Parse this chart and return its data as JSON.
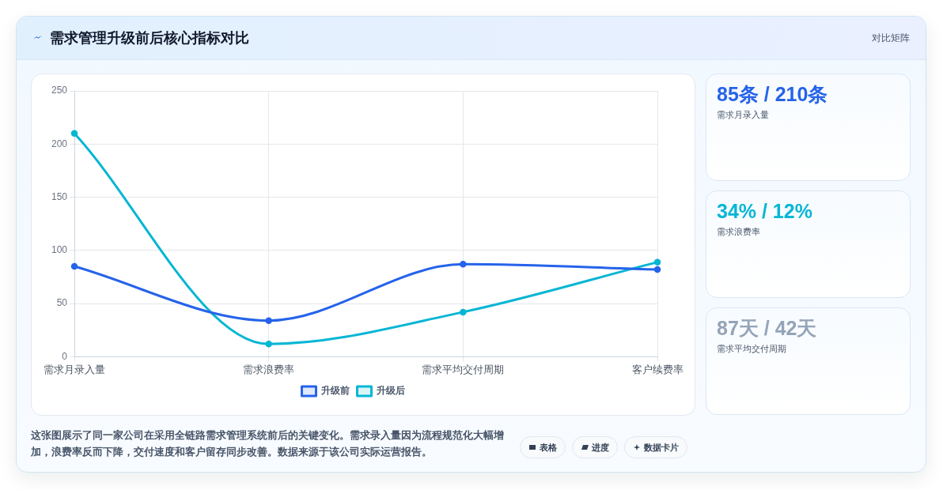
{
  "chart_data": [
    {
      "type": "line",
      "title": "需求管理升级前后核心指标对比",
      "categories": [
        "需求月录入量",
        "需求浪费率",
        "需求平均交付周期",
        "客户续费率"
      ],
      "series": [
        {
          "name": "升级前",
          "color": "#2563eb",
          "values": [
            85,
            34,
            87,
            82
          ]
        },
        {
          "name": "升级后",
          "color": "#06b6d4",
          "values": [
            210,
            12,
            42,
            89
          ]
        }
      ],
      "ylim": [
        0,
        250
      ],
      "yticks": [
        0,
        50,
        100,
        150,
        200,
        250
      ],
      "grid": true,
      "legend": "bottom",
      "marker": "circle",
      "line_style": "solid",
      "annotations": [
        "这张图展示了同一家公司在采用全链路需求管理系统前后的关键变化。需求录入量因为流程规范化大幅增加，浪费率反而下降，交付速度和客户留存同步改善。数据来源于该公司实际运营报告。",
        "表格",
        "进度",
        "数据卡片"
      ]
    },
    {
      "type": "other",
      "title": "对比矩阵",
      "annotations": [
        "85条 / 210条",
        "需求月录入量",
        "34% / 12%",
        "需求浪费率",
        "87天 / 42天",
        "需求平均交付周期"
      ]
    }
  ]
}
